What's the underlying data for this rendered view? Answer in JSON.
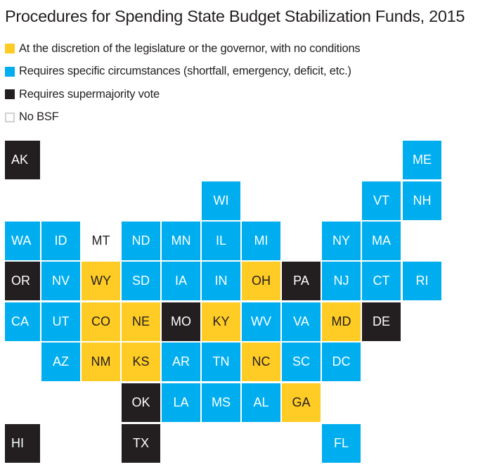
{
  "chart_data": {
    "type": "heatmap",
    "subtype": "tile-grid-map",
    "title": "Procedures for Spending State Budget Stabilization Funds, 2015",
    "legend_position": "top-left",
    "categories": [
      {
        "key": "discretion",
        "label": "At the discretion of the legislature or the governor, with no conditions",
        "color": "#ffcb25",
        "text_color": "#231f20"
      },
      {
        "key": "circumstances",
        "label": "Requires specific circumstances (shortfall, emergency, deficit, etc.)",
        "color": "#00aeef",
        "text_color": "#ffffff"
      },
      {
        "key": "supermajority",
        "label": "Requires supermajority vote",
        "color": "#231f20",
        "text_color": "#ffffff"
      },
      {
        "key": "none",
        "label": "No BSF",
        "color": "#ffffff",
        "text_color": "#231f20"
      }
    ],
    "states": [
      {
        "abbr": "AK",
        "row": 0,
        "col": 0,
        "category": "supermajority"
      },
      {
        "abbr": "ME",
        "row": 0,
        "col": 10,
        "category": "circumstances"
      },
      {
        "abbr": "WI",
        "row": 1,
        "col": 5,
        "category": "circumstances"
      },
      {
        "abbr": "VT",
        "row": 1,
        "col": 9,
        "category": "circumstances"
      },
      {
        "abbr": "NH",
        "row": 1,
        "col": 10,
        "category": "circumstances"
      },
      {
        "abbr": "WA",
        "row": 2,
        "col": 0,
        "category": "circumstances"
      },
      {
        "abbr": "ID",
        "row": 2,
        "col": 1,
        "category": "circumstances"
      },
      {
        "abbr": "MT",
        "row": 2,
        "col": 2,
        "category": "none"
      },
      {
        "abbr": "ND",
        "row": 2,
        "col": 3,
        "category": "circumstances"
      },
      {
        "abbr": "MN",
        "row": 2,
        "col": 4,
        "category": "circumstances"
      },
      {
        "abbr": "IL",
        "row": 2,
        "col": 5,
        "category": "circumstances"
      },
      {
        "abbr": "MI",
        "row": 2,
        "col": 6,
        "category": "circumstances"
      },
      {
        "abbr": "NY",
        "row": 2,
        "col": 8,
        "category": "circumstances"
      },
      {
        "abbr": "MA",
        "row": 2,
        "col": 9,
        "category": "circumstances"
      },
      {
        "abbr": "OR",
        "row": 3,
        "col": 0,
        "category": "supermajority"
      },
      {
        "abbr": "NV",
        "row": 3,
        "col": 1,
        "category": "circumstances"
      },
      {
        "abbr": "WY",
        "row": 3,
        "col": 2,
        "category": "discretion"
      },
      {
        "abbr": "SD",
        "row": 3,
        "col": 3,
        "category": "circumstances"
      },
      {
        "abbr": "IA",
        "row": 3,
        "col": 4,
        "category": "circumstances"
      },
      {
        "abbr": "IN",
        "row": 3,
        "col": 5,
        "category": "circumstances"
      },
      {
        "abbr": "OH",
        "row": 3,
        "col": 6,
        "category": "discretion"
      },
      {
        "abbr": "PA",
        "row": 3,
        "col": 7,
        "category": "supermajority"
      },
      {
        "abbr": "NJ",
        "row": 3,
        "col": 8,
        "category": "circumstances"
      },
      {
        "abbr": "CT",
        "row": 3,
        "col": 9,
        "category": "circumstances"
      },
      {
        "abbr": "RI",
        "row": 3,
        "col": 10,
        "category": "circumstances"
      },
      {
        "abbr": "CA",
        "row": 4,
        "col": 0,
        "category": "circumstances"
      },
      {
        "abbr": "UT",
        "row": 4,
        "col": 1,
        "category": "circumstances"
      },
      {
        "abbr": "CO",
        "row": 4,
        "col": 2,
        "category": "discretion"
      },
      {
        "abbr": "NE",
        "row": 4,
        "col": 3,
        "category": "discretion"
      },
      {
        "abbr": "MO",
        "row": 4,
        "col": 4,
        "category": "supermajority"
      },
      {
        "abbr": "KY",
        "row": 4,
        "col": 5,
        "category": "discretion"
      },
      {
        "abbr": "WV",
        "row": 4,
        "col": 6,
        "category": "circumstances"
      },
      {
        "abbr": "VA",
        "row": 4,
        "col": 7,
        "category": "circumstances"
      },
      {
        "abbr": "MD",
        "row": 4,
        "col": 8,
        "category": "discretion"
      },
      {
        "abbr": "DE",
        "row": 4,
        "col": 9,
        "category": "supermajority"
      },
      {
        "abbr": "AZ",
        "row": 5,
        "col": 1,
        "category": "circumstances"
      },
      {
        "abbr": "NM",
        "row": 5,
        "col": 2,
        "category": "discretion"
      },
      {
        "abbr": "KS",
        "row": 5,
        "col": 3,
        "category": "discretion"
      },
      {
        "abbr": "AR",
        "row": 5,
        "col": 4,
        "category": "circumstances"
      },
      {
        "abbr": "TN",
        "row": 5,
        "col": 5,
        "category": "circumstances"
      },
      {
        "abbr": "NC",
        "row": 5,
        "col": 6,
        "category": "discretion"
      },
      {
        "abbr": "SC",
        "row": 5,
        "col": 7,
        "category": "circumstances"
      },
      {
        "abbr": "DC",
        "row": 5,
        "col": 8,
        "category": "circumstances"
      },
      {
        "abbr": "OK",
        "row": 6,
        "col": 3,
        "category": "supermajority"
      },
      {
        "abbr": "LA",
        "row": 6,
        "col": 4,
        "category": "circumstances"
      },
      {
        "abbr": "MS",
        "row": 6,
        "col": 5,
        "category": "circumstances"
      },
      {
        "abbr": "AL",
        "row": 6,
        "col": 6,
        "category": "circumstances"
      },
      {
        "abbr": "GA",
        "row": 6,
        "col": 7,
        "category": "discretion"
      },
      {
        "abbr": "HI",
        "row": 7,
        "col": 0,
        "category": "supermajority"
      },
      {
        "abbr": "TX",
        "row": 7,
        "col": 3,
        "category": "supermajority"
      },
      {
        "abbr": "FL",
        "row": 7,
        "col": 8,
        "category": "circumstances"
      }
    ]
  }
}
